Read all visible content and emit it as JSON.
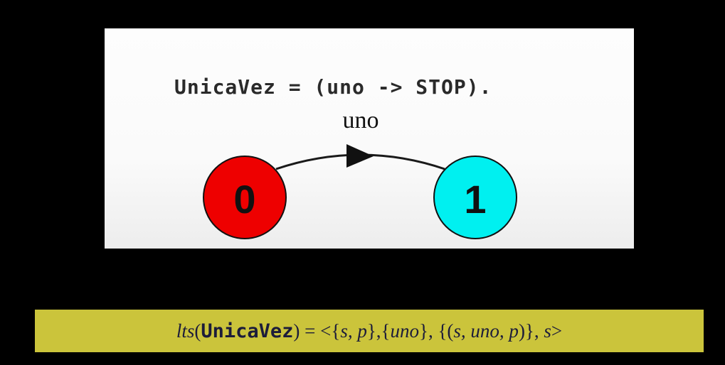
{
  "expression": {
    "text": "UnicaVez = (uno -> STOP)."
  },
  "graph": {
    "transition_label": "uno",
    "states": [
      {
        "id": "0",
        "label": "0",
        "color": "#ee0000"
      },
      {
        "id": "1",
        "label": "1",
        "color": "#00f0f0"
      }
    ],
    "edges": [
      {
        "from": "0",
        "to": "1",
        "label": "uno"
      }
    ]
  },
  "lts": {
    "fn": "lts",
    "open_paren": "(",
    "process": "UnicaVez",
    "rest": ") = <{",
    "states": "s, p",
    "mid1": "},{",
    "alphabet": "uno",
    "mid2": "}, {(",
    "transition": "s, uno, p",
    "mid3": ")}, ",
    "initial": "s",
    "close": ">"
  },
  "colors": {
    "background": "#000000",
    "panel": "#fafafa",
    "banner": "#cbc43b",
    "state0": "#ee0000",
    "state1": "#00f0f0"
  }
}
